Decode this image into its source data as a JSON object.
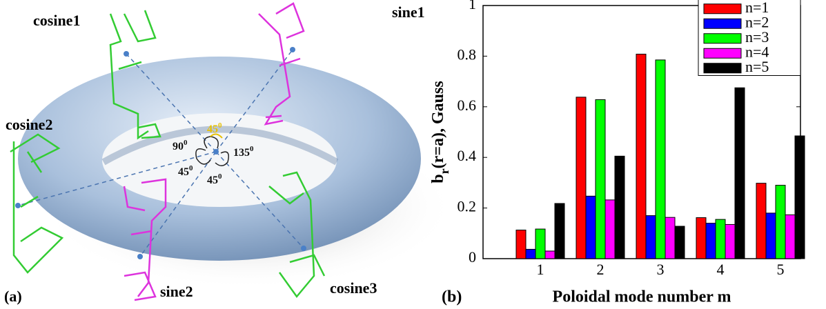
{
  "diagram": {
    "panel_label": "(a)",
    "coils": [
      "cosine1",
      "sine1",
      "cosine2",
      "sine2",
      "cosine3"
    ],
    "angles": [
      [
        "45",
        "0"
      ],
      [
        "90",
        "0"
      ],
      [
        "135",
        "0"
      ],
      [
        "45",
        "0"
      ],
      [
        "45",
        "0"
      ]
    ]
  },
  "chart_data": {
    "type": "bar",
    "panel_label": "(b)",
    "xlabel": "Poloidal mode number m",
    "ylabel_parts": [
      "b",
      "r",
      "(r=a), Gauss"
    ],
    "categories": [
      "1",
      "2",
      "3",
      "4",
      "5"
    ],
    "series": [
      {
        "name": "n=1",
        "color": "#ff0000",
        "values": [
          0.113,
          0.638,
          0.808,
          0.162,
          0.298
        ]
      },
      {
        "name": "n=2",
        "color": "#0000ff",
        "values": [
          0.037,
          0.247,
          0.17,
          0.14,
          0.18
        ]
      },
      {
        "name": "n=3",
        "color": "#00ff00",
        "values": [
          0.117,
          0.628,
          0.785,
          0.155,
          0.29
        ]
      },
      {
        "name": "n=4",
        "color": "#ff00ff",
        "values": [
          0.03,
          0.232,
          0.163,
          0.135,
          0.173
        ]
      },
      {
        "name": "n=5",
        "color": "#000000",
        "values": [
          0.218,
          0.405,
          0.128,
          0.675,
          0.485
        ]
      }
    ],
    "ylim": [
      0,
      1
    ],
    "yticks": [
      0,
      0.2,
      0.4,
      0.6,
      0.8,
      1
    ],
    "legend": "upper right"
  }
}
